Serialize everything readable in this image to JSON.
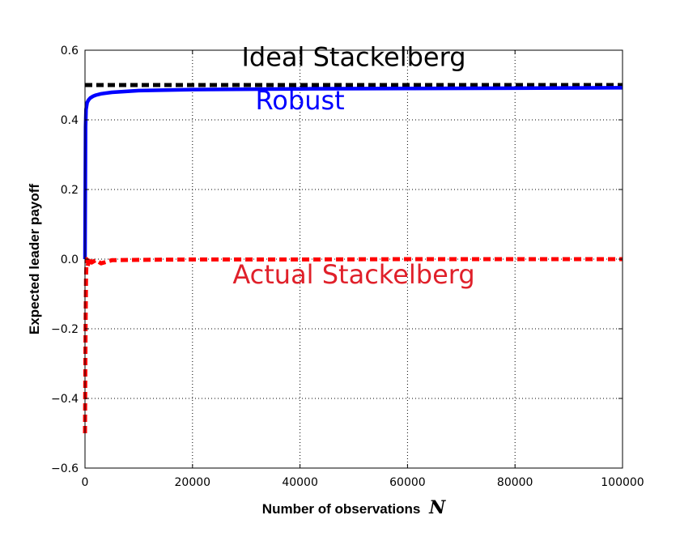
{
  "chart_data": {
    "type": "line",
    "title": "",
    "xlabel": "Number of observations",
    "xlabel_symbol": "N",
    "ylabel": "Expected leader payoff",
    "xlim": [
      0,
      100000
    ],
    "ylim": [
      -0.6,
      0.6
    ],
    "xticks": [
      0,
      20000,
      40000,
      60000,
      80000,
      100000
    ],
    "xtick_labels": [
      "0",
      "20000",
      "40000",
      "60000",
      "80000",
      "100000"
    ],
    "yticks": [
      -0.6,
      -0.4,
      -0.2,
      0.0,
      0.2,
      0.4,
      0.6
    ],
    "ytick_labels": [
      "−0.6",
      "−0.4",
      "−0.2",
      "0.0",
      "0.2",
      "0.4",
      "0.6"
    ],
    "grid": true,
    "legend": "none",
    "series": [
      {
        "name": "Ideal Stackelberg",
        "color": "#000000",
        "style": "dashed",
        "x": [
          0,
          100000
        ],
        "y": [
          0.5,
          0.5
        ]
      },
      {
        "name": "Robust",
        "color": "#0000ff",
        "style": "solid",
        "x": [
          0,
          100,
          200,
          400,
          700,
          1000,
          1500,
          2000,
          3000,
          5000,
          10000,
          20000,
          40000,
          60000,
          80000,
          100000
        ],
        "y": [
          0.0,
          0.38,
          0.43,
          0.45,
          0.458,
          0.463,
          0.468,
          0.471,
          0.475,
          0.479,
          0.484,
          0.487,
          0.489,
          0.49,
          0.491,
          0.492
        ]
      },
      {
        "name": "Actual Stackelberg",
        "color": "#ff0000",
        "style": "dashed",
        "x": [
          0,
          100,
          200,
          300,
          500,
          800,
          1200,
          2000,
          3000,
          5000,
          10000,
          20000,
          40000,
          60000,
          80000,
          100000
        ],
        "y": [
          -0.5,
          -0.2,
          -0.05,
          0.0,
          -0.02,
          0.005,
          -0.01,
          -0.003,
          -0.012,
          -0.003,
          -0.002,
          -0.001,
          -0.001,
          0.0,
          0.0,
          0.0
        ]
      }
    ],
    "annotations": [
      {
        "text": "Ideal Stackelberg",
        "color": "#000000",
        "x": 50000,
        "y": 0.555
      },
      {
        "text": "Robust",
        "color": "#0000ff",
        "x": 40000,
        "y": 0.43
      },
      {
        "text": "Actual Stackelberg",
        "color": "#e0202a",
        "x": 50000,
        "y": -0.07
      }
    ]
  }
}
